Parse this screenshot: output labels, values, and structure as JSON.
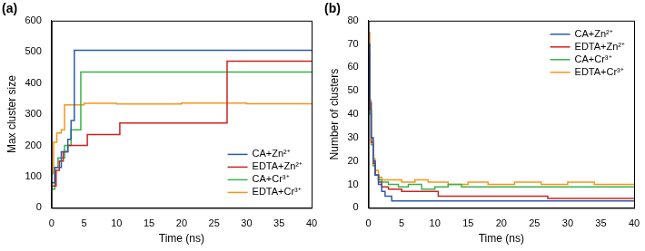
{
  "chart_data": [
    {
      "type": "line",
      "title": "(a)",
      "x_label": "Time (ns)",
      "y_label": "Max cluster size",
      "xlim": [
        0,
        40
      ],
      "xticks": [
        0,
        5,
        10,
        15,
        20,
        25,
        30,
        35,
        40
      ],
      "ylim": [
        0,
        600
      ],
      "yticks": [
        0,
        100,
        200,
        300,
        400,
        500,
        600
      ],
      "grid": false,
      "legend": "lower right",
      "line_style": "step",
      "series": [
        {
          "name": "CA+Zn²⁺",
          "color": "#2a5caa",
          "x": [
            0,
            0.5,
            1.5,
            2.5,
            3,
            3.5,
            40
          ],
          "values": [
            80,
            130,
            180,
            220,
            280,
            505,
            505
          ]
        },
        {
          "name": "EDTA+Zn²⁺",
          "color": "#c82423",
          "x": [
            0,
            0.7,
            1.2,
            1.8,
            2.5,
            5.5,
            10.5,
            27,
            40
          ],
          "values": [
            70,
            120,
            150,
            180,
            200,
            235,
            272,
            470,
            470
          ]
        },
        {
          "name": "CA+Cr³⁺",
          "color": "#37b34a",
          "x": [
            0,
            0.5,
            1,
            2,
            3,
            4.5,
            40
          ],
          "values": [
            60,
            130,
            160,
            200,
            250,
            435,
            435
          ]
        },
        {
          "name": "EDTA+Cr³⁺",
          "color": "#f7941d",
          "x": [
            0,
            0.3,
            0.8,
            1.5,
            2,
            5,
            10,
            20,
            30,
            40
          ],
          "values": [
            110,
            210,
            240,
            250,
            330,
            335,
            333,
            336,
            334,
            335
          ]
        }
      ]
    },
    {
      "type": "line",
      "title": "(b)",
      "x_label": "Time (ns)",
      "y_label": "Number of clusters",
      "xlim": [
        0,
        40
      ],
      "xticks": [
        0,
        5,
        10,
        15,
        20,
        25,
        30,
        35,
        40
      ],
      "ylim": [
        0,
        80
      ],
      "yticks": [
        0,
        10,
        20,
        30,
        40,
        50,
        60,
        70,
        80
      ],
      "grid": false,
      "legend": "upper right",
      "line_style": "step",
      "series": [
        {
          "name": "CA+Zn²⁺",
          "color": "#2a5caa",
          "x": [
            0,
            0.2,
            0.4,
            0.7,
            1,
            1.5,
            2,
            2.5,
            3.5,
            40
          ],
          "values": [
            70,
            45,
            30,
            20,
            14,
            10,
            7,
            5,
            3,
            3
          ]
        },
        {
          "name": "EDTA+Zn²⁺",
          "color": "#c82423",
          "x": [
            0,
            0.2,
            0.4,
            0.7,
            1,
            1.5,
            2,
            3,
            5,
            10.5,
            27,
            40
          ],
          "values": [
            66,
            42,
            28,
            19,
            14,
            11,
            9,
            8,
            7,
            5,
            4,
            4
          ]
        },
        {
          "name": "CA+Cr³⁺",
          "color": "#37b34a",
          "x": [
            0,
            0.2,
            0.4,
            0.7,
            1,
            1.5,
            2,
            3,
            4.5,
            6,
            8,
            10,
            12,
            14,
            17,
            20,
            25,
            30,
            35,
            40
          ],
          "values": [
            64,
            40,
            27,
            18,
            14,
            12,
            11,
            10,
            9,
            10,
            8,
            9,
            10,
            9,
            9,
            9,
            9,
            9,
            9,
            9
          ]
        },
        {
          "name": "EDTA+Cr³⁺",
          "color": "#f7941d",
          "x": [
            0,
            0.2,
            0.4,
            0.7,
            1,
            1.5,
            2,
            3,
            5,
            7,
            9,
            12,
            15,
            18,
            22,
            26,
            30,
            34,
            38,
            40
          ],
          "values": [
            75,
            46,
            30,
            21,
            16,
            13,
            12,
            12,
            11,
            12,
            11,
            10,
            11,
            10,
            11,
            10,
            11,
            10,
            10,
            10
          ]
        }
      ]
    }
  ]
}
